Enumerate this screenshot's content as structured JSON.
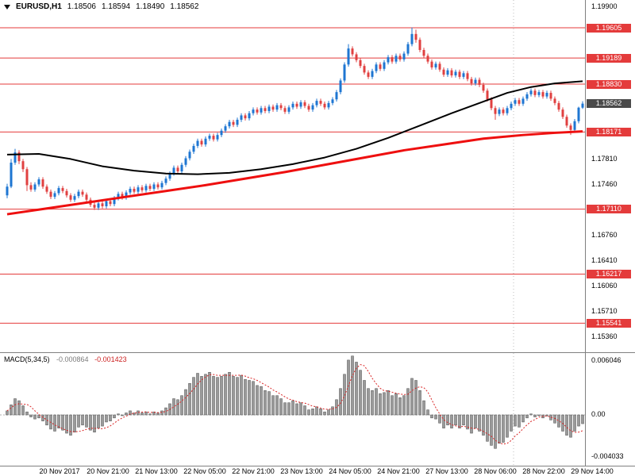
{
  "header": {
    "symbol_period": "EURUSD,H1"
  },
  "colors": {
    "background": "#ffffff",
    "bull": "#1e76d2",
    "bear": "#e04040",
    "level_line": "#e43b3b",
    "ma_black": "#000000",
    "ma_red": "#ee0f0f",
    "hist_fill": "#9a9a9a",
    "hist_stroke": "#4f4f4f",
    "signal": "#d92525",
    "current_badge": "#4a4a4a",
    "separator": "#808080",
    "axis_text": "#000000"
  },
  "chart_data": {
    "type": "candlestick",
    "symbol": "EURUSD",
    "timeframe": "H1",
    "title_ohlc": {
      "open": "1.18506",
      "high": "1.18594",
      "low": "1.18490",
      "close": "1.18562"
    },
    "price_axis_ticks": [
      "1.19900",
      "1.17810",
      "1.17460",
      "1.16760",
      "1.16410",
      "1.16060",
      "1.15710",
      "1.15360"
    ],
    "level_lines": [
      "1.19605",
      "1.19189",
      "1.18830",
      "1.18171",
      "1.17110",
      "1.16217",
      "1.15541"
    ],
    "current_price": "1.18562",
    "price_axis_range": [
      1.1536,
      1.199
    ],
    "time_ticks": [
      "20 Nov 2017",
      "20 Nov 21:00",
      "21 Nov 13:00",
      "22 Nov 05:00",
      "22 Nov 21:00",
      "23 Nov 13:00",
      "24 Nov 05:00",
      "24 Nov 21:00",
      "27 Nov 13:00",
      "28 Nov 06:00",
      "28 Nov 22:00",
      "29 Nov 14:00"
    ],
    "candles": [
      [
        1.173,
        1.1746,
        1.1726,
        1.1742
      ],
      [
        1.1742,
        1.178,
        1.174,
        1.1775
      ],
      [
        1.1775,
        1.1794,
        1.1772,
        1.1789
      ],
      [
        1.1789,
        1.1792,
        1.1773,
        1.1777
      ],
      [
        1.1777,
        1.178,
        1.1762,
        1.1766
      ],
      [
        1.1766,
        1.1769,
        1.1736,
        1.1744
      ],
      [
        1.1744,
        1.1748,
        1.1735,
        1.1738
      ],
      [
        1.1738,
        1.1748,
        1.1735,
        1.1745
      ],
      [
        1.1745,
        1.1755,
        1.1742,
        1.1752
      ],
      [
        1.1752,
        1.1755,
        1.1739,
        1.1742
      ],
      [
        1.1742,
        1.1745,
        1.1732,
        1.1735
      ],
      [
        1.1735,
        1.1738,
        1.1725,
        1.1728
      ],
      [
        1.1728,
        1.1736,
        1.1725,
        1.1733
      ],
      [
        1.1733,
        1.1743,
        1.173,
        1.174
      ],
      [
        1.174,
        1.1743,
        1.1733,
        1.1736
      ],
      [
        1.1736,
        1.1739,
        1.1727,
        1.173
      ],
      [
        1.173,
        1.1733,
        1.1721,
        1.1724
      ],
      [
        1.1724,
        1.1732,
        1.1721,
        1.1729
      ],
      [
        1.1729,
        1.1738,
        1.1726,
        1.1735
      ],
      [
        1.1735,
        1.1738,
        1.1728,
        1.1731
      ],
      [
        1.1731,
        1.1734,
        1.1721,
        1.1724
      ],
      [
        1.1724,
        1.1727,
        1.1714,
        1.1717
      ],
      [
        1.1717,
        1.172,
        1.171,
        1.1713
      ],
      [
        1.1713,
        1.1722,
        1.171,
        1.1719
      ],
      [
        1.1719,
        1.1722,
        1.1712,
        1.1715
      ],
      [
        1.1715,
        1.1725,
        1.1712,
        1.1722
      ],
      [
        1.1722,
        1.1725,
        1.1715,
        1.1718
      ],
      [
        1.1718,
        1.1729,
        1.1715,
        1.1726
      ],
      [
        1.1726,
        1.1735,
        1.1723,
        1.1732
      ],
      [
        1.1732,
        1.1735,
        1.1724,
        1.1727
      ],
      [
        1.1727,
        1.1737,
        1.1724,
        1.1734
      ],
      [
        1.1734,
        1.1742,
        1.1731,
        1.1739
      ],
      [
        1.1739,
        1.1742,
        1.1732,
        1.1735
      ],
      [
        1.1735,
        1.1744,
        1.1732,
        1.1741
      ],
      [
        1.1741,
        1.1744,
        1.1734,
        1.1737
      ],
      [
        1.1737,
        1.1746,
        1.1734,
        1.1743
      ],
      [
        1.1743,
        1.1746,
        1.1736,
        1.1739
      ],
      [
        1.1739,
        1.1748,
        1.1736,
        1.1745
      ],
      [
        1.1745,
        1.1748,
        1.1738,
        1.1741
      ],
      [
        1.1741,
        1.175,
        1.1738,
        1.1747
      ],
      [
        1.1747,
        1.1756,
        1.1744,
        1.1753
      ],
      [
        1.1753,
        1.1763,
        1.175,
        1.176
      ],
      [
        1.176,
        1.1771,
        1.1757,
        1.1768
      ],
      [
        1.1768,
        1.1771,
        1.176,
        1.1763
      ],
      [
        1.1763,
        1.1775,
        1.176,
        1.1772
      ],
      [
        1.1772,
        1.1784,
        1.1769,
        1.1781
      ],
      [
        1.1781,
        1.1793,
        1.1778,
        1.179
      ],
      [
        1.179,
        1.1801,
        1.1787,
        1.1798
      ],
      [
        1.1798,
        1.1808,
        1.1795,
        1.1805
      ],
      [
        1.1805,
        1.1808,
        1.1797,
        1.18
      ],
      [
        1.18,
        1.1811,
        1.1797,
        1.1808
      ],
      [
        1.1808,
        1.1815,
        1.1805,
        1.1812
      ],
      [
        1.1812,
        1.1815,
        1.1804,
        1.1807
      ],
      [
        1.1807,
        1.1816,
        1.1804,
        1.1813
      ],
      [
        1.1813,
        1.1822,
        1.181,
        1.1819
      ],
      [
        1.1819,
        1.1828,
        1.1816,
        1.1825
      ],
      [
        1.1825,
        1.1834,
        1.1822,
        1.1831
      ],
      [
        1.1831,
        1.1834,
        1.1824,
        1.1827
      ],
      [
        1.1827,
        1.1837,
        1.1824,
        1.1834
      ],
      [
        1.1834,
        1.1843,
        1.1831,
        1.184
      ],
      [
        1.184,
        1.1843,
        1.1833,
        1.1836
      ],
      [
        1.1836,
        1.1846,
        1.1833,
        1.1843
      ],
      [
        1.1843,
        1.1851,
        1.184,
        1.1848
      ],
      [
        1.1848,
        1.1851,
        1.1841,
        1.1844
      ],
      [
        1.1844,
        1.1853,
        1.1841,
        1.185
      ],
      [
        1.185,
        1.1853,
        1.1843,
        1.1846
      ],
      [
        1.1846,
        1.1855,
        1.1843,
        1.1852
      ],
      [
        1.1852,
        1.1855,
        1.1845,
        1.1848
      ],
      [
        1.1848,
        1.1857,
        1.1845,
        1.1854
      ],
      [
        1.1854,
        1.1857,
        1.1847,
        1.185
      ],
      [
        1.185,
        1.1853,
        1.1842,
        1.1845
      ],
      [
        1.1845,
        1.1854,
        1.1842,
        1.1851
      ],
      [
        1.1851,
        1.1859,
        1.1848,
        1.1856
      ],
      [
        1.1856,
        1.1859,
        1.1849,
        1.1852
      ],
      [
        1.1852,
        1.1861,
        1.1849,
        1.1858
      ],
      [
        1.1858,
        1.1861,
        1.185,
        1.1853
      ],
      [
        1.1853,
        1.1856,
        1.1845,
        1.1848
      ],
      [
        1.1848,
        1.1857,
        1.1845,
        1.1854
      ],
      [
        1.1854,
        1.1863,
        1.1851,
        1.186
      ],
      [
        1.186,
        1.1863,
        1.1853,
        1.1856
      ],
      [
        1.1856,
        1.1859,
        1.1848,
        1.1851
      ],
      [
        1.1851,
        1.186,
        1.1848,
        1.1857
      ],
      [
        1.1857,
        1.1865,
        1.1854,
        1.1862
      ],
      [
        1.1862,
        1.1875,
        1.1859,
        1.1872
      ],
      [
        1.1872,
        1.1891,
        1.1869,
        1.1888
      ],
      [
        1.1888,
        1.1913,
        1.1885,
        1.191
      ],
      [
        1.191,
        1.1938,
        1.1907,
        1.1932
      ],
      [
        1.1932,
        1.1935,
        1.1921,
        1.1924
      ],
      [
        1.1924,
        1.1927,
        1.1913,
        1.1916
      ],
      [
        1.1916,
        1.1919,
        1.1905,
        1.1908
      ],
      [
        1.1908,
        1.1911,
        1.1896,
        1.1899
      ],
      [
        1.1899,
        1.1902,
        1.189,
        1.1893
      ],
      [
        1.1893,
        1.1904,
        1.189,
        1.1901
      ],
      [
        1.1901,
        1.1913,
        1.1898,
        1.191
      ],
      [
        1.191,
        1.1913,
        1.1901,
        1.1904
      ],
      [
        1.1904,
        1.1916,
        1.1901,
        1.1913
      ],
      [
        1.1913,
        1.1923,
        1.191,
        1.192
      ],
      [
        1.192,
        1.1923,
        1.1911,
        1.1914
      ],
      [
        1.1914,
        1.1925,
        1.1911,
        1.1922
      ],
      [
        1.1922,
        1.1925,
        1.1914,
        1.1917
      ],
      [
        1.1917,
        1.1928,
        1.1914,
        1.1925
      ],
      [
        1.1925,
        1.1941,
        1.1922,
        1.1938
      ],
      [
        1.1938,
        1.1961,
        1.1935,
        1.1952
      ],
      [
        1.1952,
        1.1958,
        1.194,
        1.1944
      ],
      [
        1.1944,
        1.1947,
        1.1927,
        1.193
      ],
      [
        1.193,
        1.1933,
        1.1919,
        1.1922
      ],
      [
        1.1922,
        1.1925,
        1.1911,
        1.1914
      ],
      [
        1.1914,
        1.1917,
        1.1903,
        1.1906
      ],
      [
        1.1906,
        1.1914,
        1.1903,
        1.1911
      ],
      [
        1.1911,
        1.1914,
        1.19,
        1.1903
      ],
      [
        1.1903,
        1.1906,
        1.1893,
        1.1896
      ],
      [
        1.1896,
        1.1905,
        1.1893,
        1.1902
      ],
      [
        1.1902,
        1.1905,
        1.1892,
        1.1895
      ],
      [
        1.1895,
        1.1903,
        1.1892,
        1.19
      ],
      [
        1.19,
        1.1903,
        1.189,
        1.1893
      ],
      [
        1.1893,
        1.1901,
        1.189,
        1.1898
      ],
      [
        1.1898,
        1.1901,
        1.1887,
        1.189
      ],
      [
        1.189,
        1.1893,
        1.1881,
        1.1884
      ],
      [
        1.1884,
        1.1892,
        1.1881,
        1.1889
      ],
      [
        1.1889,
        1.1892,
        1.1879,
        1.1882
      ],
      [
        1.1882,
        1.1885,
        1.1871,
        1.1874
      ],
      [
        1.1874,
        1.1877,
        1.1859,
        1.1862
      ],
      [
        1.1862,
        1.1865,
        1.1847,
        1.185
      ],
      [
        1.185,
        1.1853,
        1.1834,
        1.1842
      ],
      [
        1.1842,
        1.1851,
        1.1839,
        1.1848
      ],
      [
        1.1848,
        1.1851,
        1.184,
        1.1843
      ],
      [
        1.1843,
        1.1853,
        1.184,
        1.185
      ],
      [
        1.185,
        1.1859,
        1.1847,
        1.1856
      ],
      [
        1.1856,
        1.1864,
        1.1853,
        1.1861
      ],
      [
        1.1861,
        1.1864,
        1.1853,
        1.1856
      ],
      [
        1.1856,
        1.1866,
        1.1853,
        1.1863
      ],
      [
        1.1863,
        1.1872,
        1.186,
        1.1869
      ],
      [
        1.1869,
        1.1877,
        1.1866,
        1.1874
      ],
      [
        1.1874,
        1.1877,
        1.1865,
        1.1868
      ],
      [
        1.1868,
        1.1875,
        1.1865,
        1.1872
      ],
      [
        1.1872,
        1.1875,
        1.1863,
        1.1866
      ],
      [
        1.1866,
        1.1874,
        1.1863,
        1.1871
      ],
      [
        1.1871,
        1.1874,
        1.186,
        1.1863
      ],
      [
        1.1863,
        1.1866,
        1.1854,
        1.1857
      ],
      [
        1.1857,
        1.186,
        1.1845,
        1.1848
      ],
      [
        1.1848,
        1.1851,
        1.1835,
        1.1838
      ],
      [
        1.1838,
        1.1841,
        1.1823,
        1.1826
      ],
      [
        1.1826,
        1.1829,
        1.1813,
        1.182
      ],
      [
        1.182,
        1.1835,
        1.1817,
        1.1832
      ],
      [
        1.1832,
        1.1852,
        1.1829,
        1.18506
      ],
      [
        1.18506,
        1.18594,
        1.1849,
        1.18562
      ]
    ],
    "ma_black_points": [
      [
        0,
        1.1786
      ],
      [
        8,
        1.1787
      ],
      [
        16,
        1.178
      ],
      [
        24,
        1.177
      ],
      [
        32,
        1.1764
      ],
      [
        40,
        1.176
      ],
      [
        48,
        1.1759
      ],
      [
        56,
        1.1761
      ],
      [
        64,
        1.1766
      ],
      [
        72,
        1.1773
      ],
      [
        80,
        1.1782
      ],
      [
        88,
        1.1794
      ],
      [
        96,
        1.1809
      ],
      [
        104,
        1.1826
      ],
      [
        112,
        1.1843
      ],
      [
        120,
        1.1859
      ],
      [
        126,
        1.1871
      ],
      [
        132,
        1.1879
      ],
      [
        138,
        1.1884
      ],
      [
        145,
        1.1887
      ]
    ],
    "ma_red_points": [
      [
        0,
        1.1704
      ],
      [
        10,
        1.1712
      ],
      [
        20,
        1.172
      ],
      [
        30,
        1.1728
      ],
      [
        40,
        1.1736
      ],
      [
        50,
        1.1744
      ],
      [
        60,
        1.1753
      ],
      [
        70,
        1.1762
      ],
      [
        80,
        1.1772
      ],
      [
        90,
        1.1782
      ],
      [
        100,
        1.1792
      ],
      [
        110,
        1.18
      ],
      [
        120,
        1.1808
      ],
      [
        130,
        1.1813
      ],
      [
        138,
        1.1816
      ],
      [
        145,
        1.1818
      ]
    ],
    "macd": {
      "label": "MACD(5,34,5)",
      "main_value": "-0.000864",
      "signal_value": "-0.001423",
      "axis_ticks": [
        "0.006046",
        "0.00",
        "-0.004033"
      ],
      "histogram": [
        0.0004,
        0.001,
        0.0016,
        0.0014,
        0.0009,
        0.0003,
        -0.0002,
        -0.0004,
        -0.0003,
        -0.0006,
        -0.001,
        -0.0014,
        -0.0016,
        -0.0013,
        -0.0015,
        -0.0018,
        -0.002,
        -0.0017,
        -0.0012,
        -0.001,
        -0.0012,
        -0.0015,
        -0.0017,
        -0.0013,
        -0.0011,
        -0.0007,
        -0.0006,
        -0.0003,
        0.0001,
        0.0,
        0.0002,
        0.0004,
        0.0002,
        0.0004,
        0.0002,
        0.0003,
        0.0001,
        0.0003,
        0.0002,
        0.0004,
        0.0007,
        0.0011,
        0.0016,
        0.0015,
        0.0019,
        0.0025,
        0.0031,
        0.0037,
        0.0041,
        0.0038,
        0.004,
        0.0042,
        0.0038,
        0.0037,
        0.0038,
        0.004,
        0.0042,
        0.0038,
        0.0037,
        0.0039,
        0.0035,
        0.0034,
        0.0033,
        0.0029,
        0.0028,
        0.0024,
        0.0023,
        0.0019,
        0.0019,
        0.0016,
        0.0012,
        0.0012,
        0.0014,
        0.0011,
        0.0012,
        0.0009,
        0.0005,
        0.0006,
        0.0008,
        0.0006,
        0.0003,
        0.0005,
        0.0008,
        0.0015,
        0.0026,
        0.004,
        0.0054,
        0.0058,
        0.0052,
        0.0044,
        0.0034,
        0.0026,
        0.0024,
        0.0026,
        0.0021,
        0.0022,
        0.0024,
        0.0019,
        0.0021,
        0.0017,
        0.0019,
        0.0026,
        0.0036,
        0.0034,
        0.0024,
        0.0014,
        0.0005,
        -0.0003,
        -0.0004,
        -0.0008,
        -0.0013,
        -0.001,
        -0.0013,
        -0.001,
        -0.0013,
        -0.001,
        -0.0014,
        -0.0018,
        -0.0013,
        -0.0016,
        -0.002,
        -0.0026,
        -0.003,
        -0.0033,
        -0.0028,
        -0.0027,
        -0.0022,
        -0.0016,
        -0.0011,
        -0.0012,
        -0.0007,
        -0.0003,
        0.0001,
        -0.0002,
        0.0,
        -0.0003,
        -0.0001,
        -0.0005,
        -0.0008,
        -0.0012,
        -0.0016,
        -0.002,
        -0.0022,
        -0.0016,
        -0.0011,
        -0.000864
      ]
    }
  }
}
